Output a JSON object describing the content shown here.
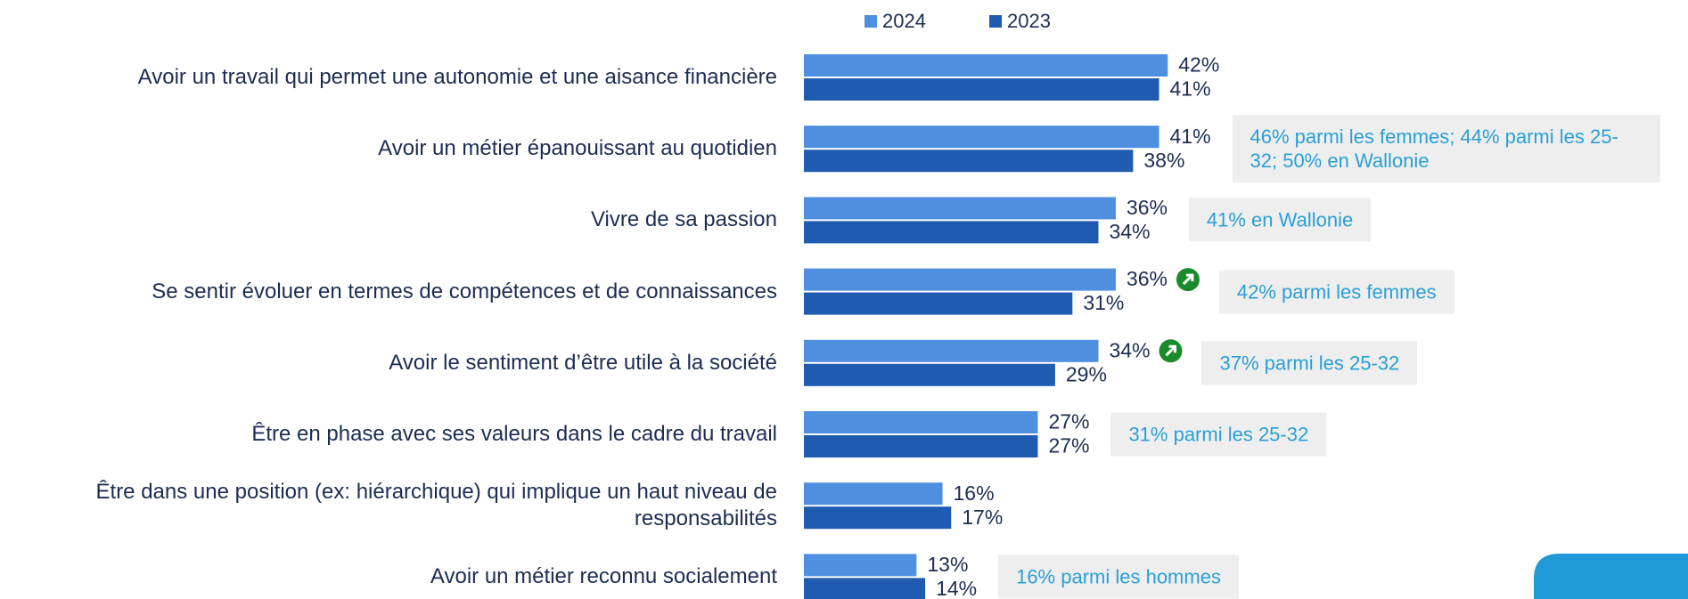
{
  "chart_data": {
    "type": "bar",
    "orientation": "horizontal",
    "categories": [
      "Avoir un travail qui permet une autonomie et une aisance financière",
      "Avoir un métier épanouissant au quotidien",
      "Vivre de sa passion",
      "Se sentir évoluer en termes de compétences et de connaissances",
      "Avoir le sentiment d’être utile à la société",
      "Être en phase avec ses valeurs dans le cadre du travail",
      "Être dans une position (ex: hiérarchique) qui implique un haut niveau de responsabilités",
      "Avoir un métier reconnu socialement"
    ],
    "series": [
      {
        "name": "2024",
        "color": "#4f8fe0",
        "values": [
          42,
          41,
          36,
          36,
          34,
          27,
          16,
          13
        ],
        "value_labels": [
          "42%",
          "41%",
          "36%",
          "36%",
          "34%",
          "27%",
          "16%",
          "13%"
        ]
      },
      {
        "name": "2023",
        "color": "#1f5bb0",
        "values": [
          41,
          38,
          34,
          31,
          29,
          27,
          17,
          14
        ],
        "value_labels": [
          "41%",
          "38%",
          "34%",
          "31%",
          "29%",
          "27%",
          "17%",
          "14%"
        ]
      }
    ],
    "significant_increase": [
      false,
      false,
      false,
      true,
      true,
      false,
      false,
      false
    ],
    "annotations": [
      null,
      "46% parmi les femmes; 44% parmi les 25-32; 50% en Wallonie",
      "41% en Wallonie",
      "42% parmi les femmes",
      "37% parmi les 25-32",
      "31% parmi les 25-32",
      null,
      "16% parmi les hommes"
    ],
    "xlim": [
      0,
      100
    ],
    "legend": "top"
  }
}
